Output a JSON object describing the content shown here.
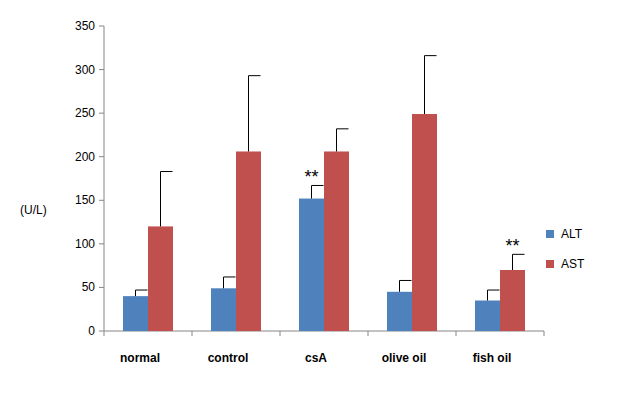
{
  "chart_data": {
    "type": "bar",
    "y_label": "(U/L)",
    "categories": [
      "normal",
      "control",
      "csA",
      "olive oil",
      "fish oil"
    ],
    "series": [
      {
        "name": "ALT",
        "color": "#4f81bd",
        "values": [
          40,
          49,
          152,
          45,
          35
        ],
        "errors": [
          7,
          13,
          15,
          13,
          12
        ]
      },
      {
        "name": "AST",
        "color": "#c0504d",
        "values": [
          120,
          206,
          206,
          249,
          70
        ],
        "errors": [
          63,
          87,
          26,
          67,
          18
        ]
      }
    ],
    "ylim": [
      0,
      350
    ],
    "yticks": [
      0,
      50,
      100,
      150,
      200,
      250,
      300,
      350
    ],
    "grid": false,
    "legend": "right",
    "annotations": [
      {
        "text": "**",
        "category": 2,
        "series": 0
      },
      {
        "text": "**",
        "category": 4,
        "series": 1
      }
    ]
  }
}
